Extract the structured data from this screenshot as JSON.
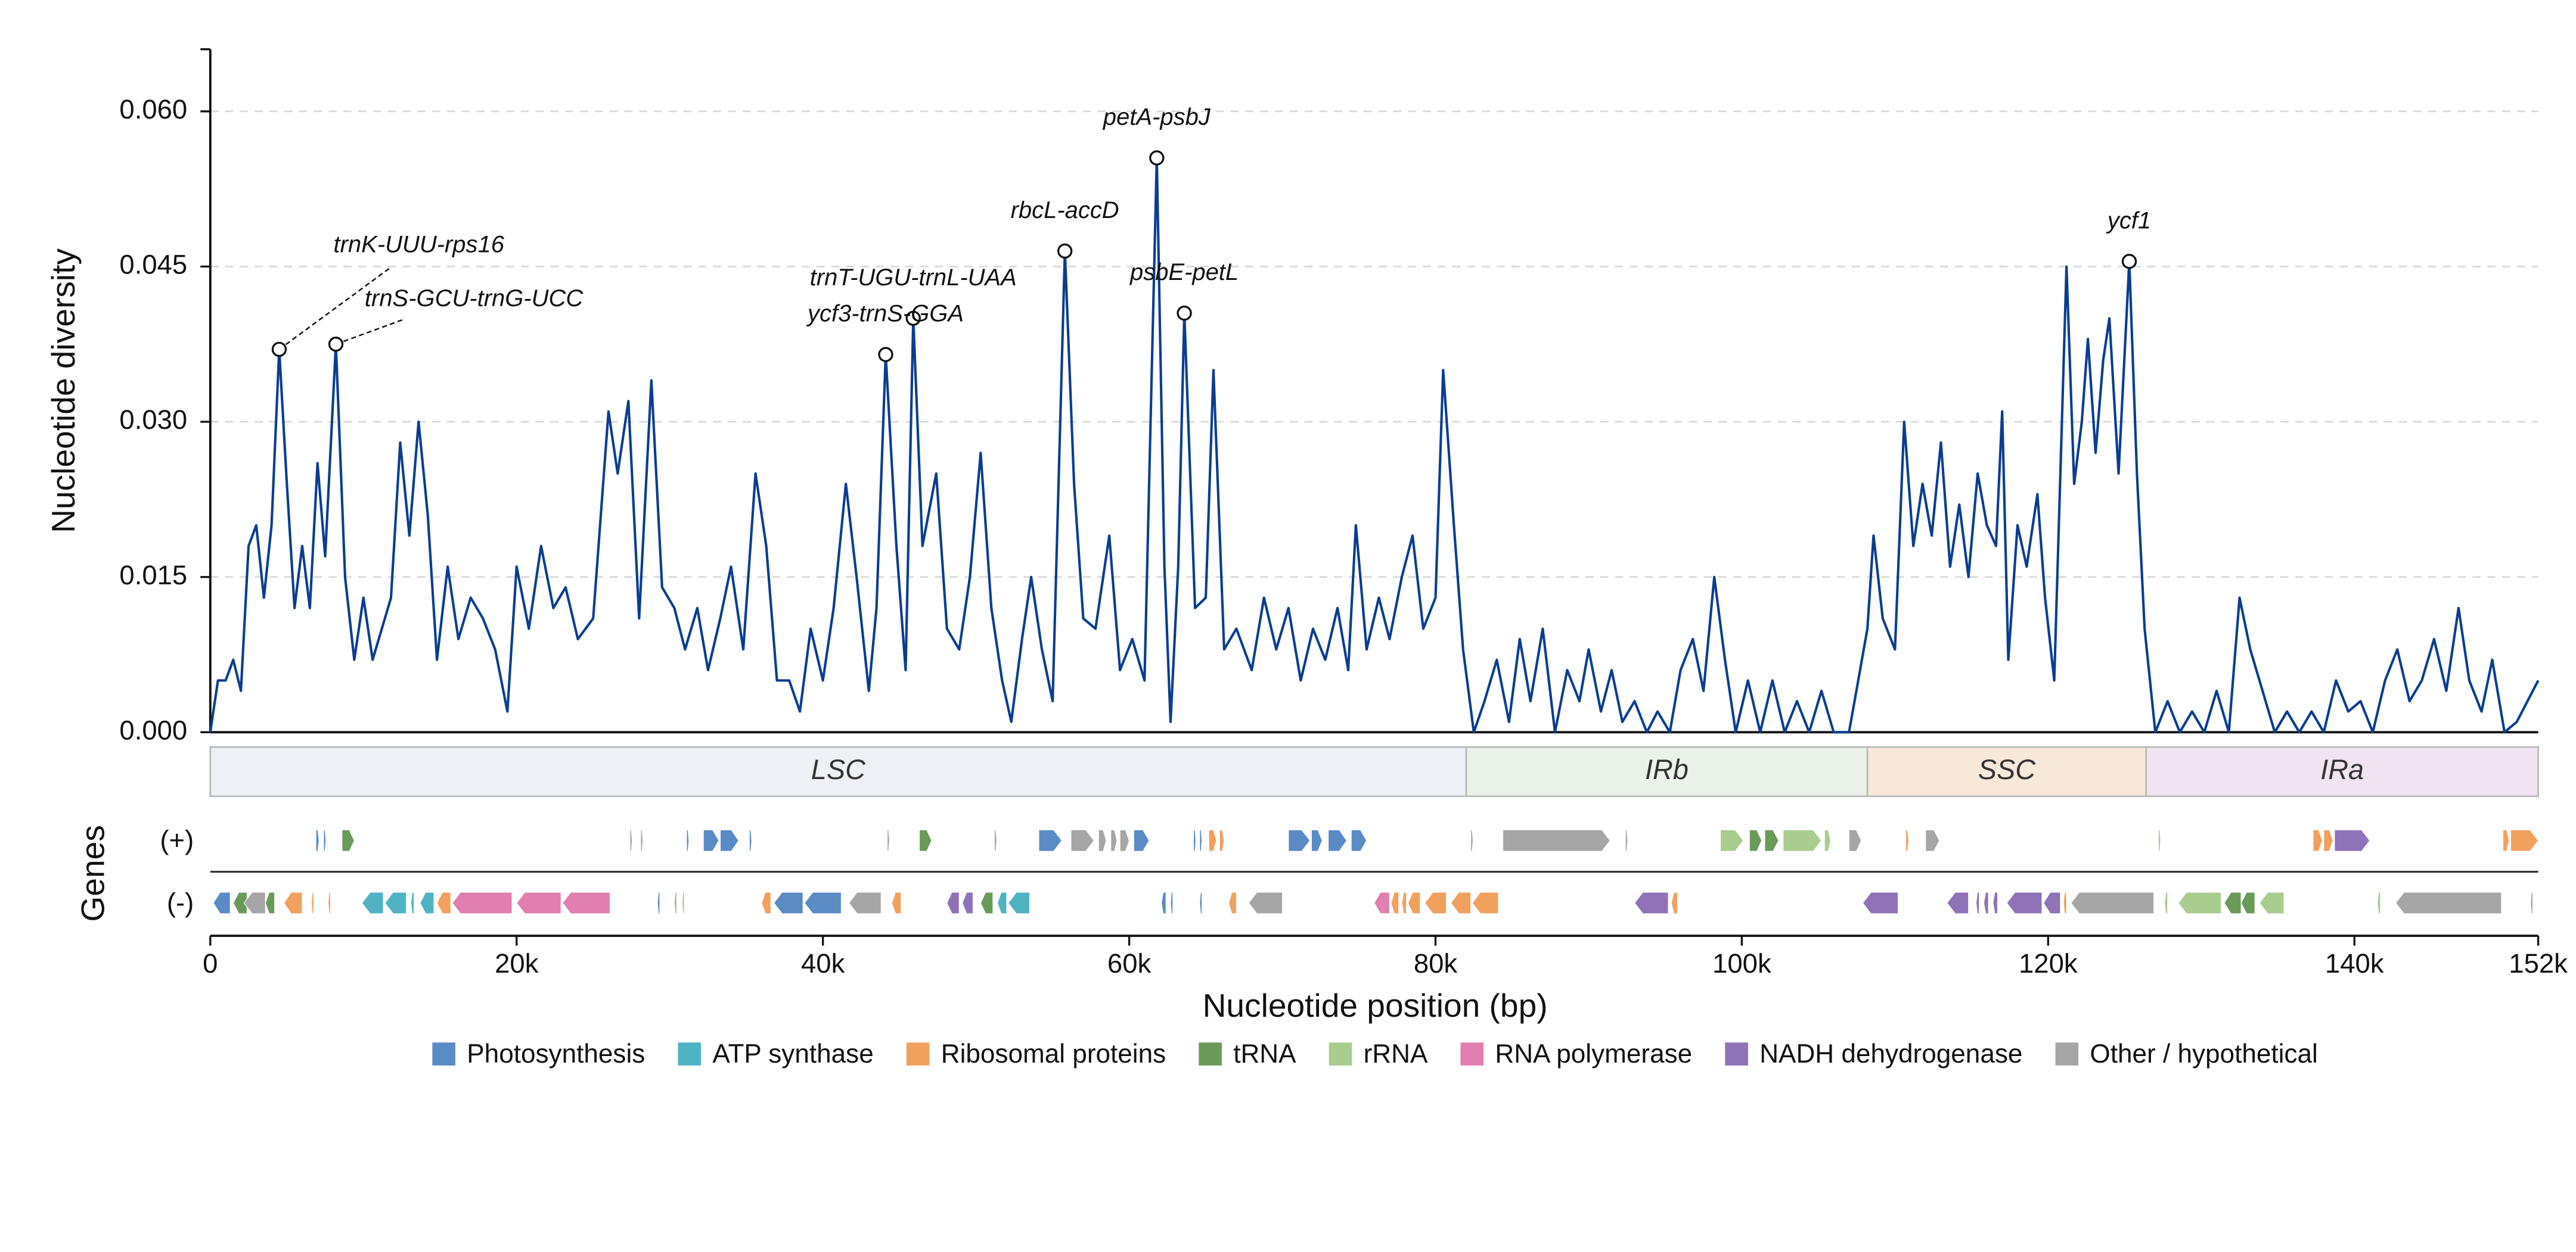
{
  "chart_data": {
    "type": "line",
    "y_label": "Nucleotide diversity",
    "x_label": "Nucleotide position (bp)",
    "color": "#0b3d91",
    "grid": true,
    "xlim": [
      0,
      152000
    ],
    "xticks": [
      0,
      {
        "value": 20000,
        "label": "20k"
      },
      {
        "value": 40000,
        "label": "40k"
      },
      {
        "value": 60000,
        "label": "60k"
      },
      {
        "value": 80000,
        "label": "80k"
      },
      {
        "value": 100000,
        "label": "100k"
      },
      {
        "value": 120000,
        "label": "120k"
      },
      {
        "value": 140000,
        "label": "140k"
      },
      {
        "value": 152000,
        "label": "152k"
      }
    ],
    "ylim": [
      0,
      0.066
    ],
    "yticks": [
      {
        "value": 0,
        "label": "0.000"
      },
      {
        "value": 0.015,
        "label": "0.015"
      },
      {
        "value": 0.03,
        "label": "0.030"
      },
      {
        "value": 0.045,
        "label": "0.045"
      },
      {
        "value": 0.06,
        "label": "0.060"
      }
    ],
    "x": [
      0,
      500,
      1000,
      1500,
      2000,
      2500,
      3000,
      3500,
      4000,
      4500,
      5000,
      5500,
      6000,
      6500,
      7000,
      7500,
      8200,
      8800,
      9400,
      10000,
      10600,
      11200,
      11800,
      12400,
      13000,
      13600,
      14200,
      14800,
      15500,
      16200,
      17000,
      17800,
      18600,
      19400,
      20000,
      20800,
      21600,
      22400,
      23200,
      24000,
      25000,
      26000,
      26600,
      27300,
      28000,
      28800,
      29500,
      30300,
      31000,
      31800,
      32500,
      33300,
      34000,
      34800,
      35600,
      36300,
      37000,
      37800,
      38500,
      39200,
      40000,
      40700,
      41500,
      42200,
      43000,
      43500,
      44100,
      44800,
      45400,
      45900,
      46500,
      47400,
      48100,
      48900,
      49600,
      50300,
      51000,
      51700,
      52300,
      53000,
      53600,
      54300,
      55000,
      55800,
      56400,
      57000,
      57800,
      58700,
      59400,
      60200,
      61000,
      61800,
      62300,
      62700,
      63200,
      63600,
      64300,
      65000,
      65500,
      66200,
      67000,
      68000,
      68800,
      69600,
      70400,
      71200,
      72000,
      72800,
      73600,
      74300,
      74800,
      75500,
      76300,
      77000,
      77800,
      78500,
      79200,
      80000,
      80500,
      81200,
      81800,
      82500,
      83200,
      84000,
      84800,
      85500,
      86200,
      87000,
      87800,
      88600,
      89400,
      90000,
      90800,
      91500,
      92200,
      93000,
      93800,
      94500,
      95300,
      96000,
      96800,
      97500,
      98200,
      98900,
      99600,
      100400,
      101200,
      102000,
      102800,
      103600,
      104400,
      105200,
      106000,
      107000,
      107600,
      108200,
      108600,
      109200,
      110000,
      110600,
      111200,
      111800,
      112400,
      113000,
      113600,
      114200,
      114800,
      115400,
      116000,
      116600,
      117000,
      117400,
      118000,
      118600,
      119300,
      119800,
      120400,
      121200,
      121700,
      122200,
      122600,
      123100,
      123600,
      124000,
      124600,
      125300,
      125800,
      126300,
      127000,
      127800,
      128600,
      129400,
      130200,
      131000,
      131800,
      132500,
      133200,
      134000,
      134800,
      135600,
      136400,
      137200,
      138000,
      138800,
      139600,
      140400,
      141200,
      142000,
      142800,
      143600,
      144400,
      145200,
      146000,
      146800,
      147500,
      148300,
      149000,
      149800,
      150600,
      151300,
      152000
    ],
    "values": [
      0,
      0.005,
      0.005,
      0.007,
      0.004,
      0.018,
      0.02,
      0.013,
      0.02,
      0.037,
      0.024,
      0.012,
      0.018,
      0.012,
      0.026,
      0.017,
      0.0375,
      0.015,
      0.007,
      0.013,
      0.007,
      0.01,
      0.013,
      0.028,
      0.019,
      0.03,
      0.021,
      0.007,
      0.016,
      0.009,
      0.013,
      0.011,
      0.008,
      0.002,
      0.016,
      0.01,
      0.018,
      0.012,
      0.014,
      0.009,
      0.011,
      0.031,
      0.025,
      0.032,
      0.011,
      0.034,
      0.014,
      0.012,
      0.008,
      0.012,
      0.006,
      0.011,
      0.016,
      0.008,
      0.025,
      0.018,
      0.005,
      0.005,
      0.002,
      0.01,
      0.005,
      0.012,
      0.024,
      0.015,
      0.004,
      0.012,
      0.0365,
      0.018,
      0.006,
      0.04,
      0.018,
      0.025,
      0.01,
      0.008,
      0.015,
      0.027,
      0.012,
      0.005,
      0.001,
      0.009,
      0.015,
      0.008,
      0.003,
      0.0465,
      0.024,
      0.011,
      0.01,
      0.019,
      0.006,
      0.009,
      0.005,
      0.0555,
      0.016,
      0.001,
      0.016,
      0.0405,
      0.012,
      0.013,
      0.035,
      0.008,
      0.01,
      0.006,
      0.013,
      0.008,
      0.012,
      0.005,
      0.01,
      0.007,
      0.012,
      0.006,
      0.02,
      0.008,
      0.013,
      0.009,
      0.015,
      0.019,
      0.01,
      0.013,
      0.035,
      0.02,
      0.008,
      0,
      0.003,
      0.007,
      0.001,
      0.009,
      0.003,
      0.01,
      0,
      0.006,
      0.003,
      0.008,
      0.002,
      0.006,
      0.001,
      0.003,
      0,
      0.002,
      0,
      0.006,
      0.009,
      0.004,
      0.015,
      0.007,
      0,
      0.005,
      0,
      0.005,
      0,
      0.003,
      0,
      0.004,
      0,
      0,
      0.005,
      0.01,
      0.019,
      0.011,
      0.008,
      0.03,
      0.018,
      0.024,
      0.019,
      0.028,
      0.016,
      0.022,
      0.015,
      0.025,
      0.02,
      0.018,
      0.031,
      0.007,
      0.02,
      0.016,
      0.023,
      0.013,
      0.005,
      0.045,
      0.024,
      0.03,
      0.038,
      0.027,
      0.036,
      0.04,
      0.025,
      0.0455,
      0.025,
      0.01,
      0,
      0.003,
      0,
      0.002,
      0,
      0.004,
      0,
      0.013,
      0.008,
      0.004,
      0,
      0.002,
      0,
      0.002,
      0,
      0.005,
      0.002,
      0.003,
      0,
      0.005,
      0.008,
      0.003,
      0.005,
      0.009,
      0.004,
      0.012,
      0.005,
      0.002,
      0.007,
      0,
      0.001,
      0.003,
      0.005
    ],
    "annotations": [
      {
        "label": "trnK-UUU-rps16",
        "x": 4500,
        "y": 0.037
      },
      {
        "label": "trnS-GCU-trnG-UCC",
        "x": 8200,
        "y": 0.0375
      },
      {
        "label": "trnT-UGU-trnL-UAA",
        "x": 45900,
        "y": 0.04
      },
      {
        "label": "ycf3-trnS-GGA",
        "x": 44100,
        "y": 0.0365
      },
      {
        "label": "rbcL-accD",
        "x": 55800,
        "y": 0.0465
      },
      {
        "label": "petA-psbJ",
        "x": 61800,
        "y": 0.0555
      },
      {
        "label": "psbE-petL",
        "x": 63600,
        "y": 0.0405
      },
      {
        "label": "ycf1",
        "x": 125300,
        "y": 0.0455
      }
    ],
    "regions": [
      {
        "name": "LSC",
        "start": 0,
        "end": 82000,
        "color": "#edf1f5"
      },
      {
        "name": "IRb",
        "start": 82000,
        "end": 108200,
        "color": "#ebf2ea"
      },
      {
        "name": "SSC",
        "start": 108200,
        "end": 126400,
        "color": "#f8e8da"
      },
      {
        "name": "IRa",
        "start": 126400,
        "end": 152000,
        "color": "#f0e4f1"
      }
    ],
    "genes_label": "Genes",
    "plus_label": "(+)",
    "minus_label": "(-)",
    "gene_categories": [
      {
        "name": "Photosynthesis",
        "color": "#5b8bc5"
      },
      {
        "name": "ATP synthase",
        "color": "#4fb3c4"
      },
      {
        "name": "Ribosomal proteins",
        "color": "#f2a05e"
      },
      {
        "name": "tRNA",
        "color": "#6a9a5a"
      },
      {
        "name": "rRNA",
        "color": "#a9cc8f"
      },
      {
        "name": "RNA polymerase",
        "color": "#e07fb0"
      },
      {
        "name": "NADH dehydrogenase",
        "color": "#8f72b7"
      },
      {
        "name": "Other / hypothetical",
        "color": "#a6a6a6"
      }
    ],
    "genes": {
      "plus": [
        [
          6900,
          7100,
          0
        ],
        [
          7400,
          7550,
          0
        ],
        [
          8600,
          9400,
          3
        ],
        [
          27400,
          27550,
          7
        ],
        [
          28100,
          28250,
          7
        ],
        [
          31100,
          31250,
          0
        ],
        [
          32200,
          33200,
          0
        ],
        [
          33300,
          34500,
          0
        ],
        [
          35200,
          35350,
          0
        ],
        [
          44200,
          44350,
          7
        ],
        [
          46300,
          47100,
          3
        ],
        [
          51200,
          51350,
          7
        ],
        [
          54100,
          55600,
          0
        ],
        [
          56200,
          57700,
          7
        ],
        [
          58000,
          58500,
          7
        ],
        [
          58800,
          59200,
          7
        ],
        [
          59400,
          60000,
          7
        ],
        [
          60300,
          61300,
          0
        ],
        [
          64200,
          64350,
          0
        ],
        [
          64600,
          64750,
          0
        ],
        [
          65200,
          65700,
          2
        ],
        [
          65900,
          66200,
          2
        ],
        [
          70400,
          71800,
          0
        ],
        [
          71900,
          72600,
          0
        ],
        [
          73000,
          74200,
          0
        ],
        [
          74500,
          75500,
          0
        ],
        [
          82300,
          82450,
          7
        ],
        [
          84400,
          91400,
          7
        ],
        [
          92400,
          92550,
          7
        ],
        [
          98600,
          100100,
          4
        ],
        [
          100500,
          101300,
          3
        ],
        [
          101500,
          102400,
          3
        ],
        [
          102700,
          105200,
          4
        ],
        [
          105400,
          105800,
          4
        ],
        [
          107000,
          107800,
          7
        ],
        [
          110700,
          110900,
          2
        ],
        [
          112000,
          112900,
          7
        ],
        [
          127200,
          127350,
          4
        ],
        [
          137300,
          137900,
          2
        ],
        [
          138000,
          138600,
          2
        ],
        [
          138700,
          141000,
          6
        ],
        [
          149700,
          150100,
          2
        ],
        [
          150200,
          152000,
          2
        ]
      ],
      "minus": [
        [
          200,
          1300,
          0
        ],
        [
          1500,
          2400,
          3
        ],
        [
          2200,
          3600,
          7
        ],
        [
          3600,
          4200,
          3
        ],
        [
          4800,
          6000,
          2
        ],
        [
          6600,
          6750,
          2
        ],
        [
          7700,
          7850,
          2
        ],
        [
          9900,
          11300,
          1
        ],
        [
          11400,
          12800,
          1
        ],
        [
          13100,
          13300,
          1
        ],
        [
          13700,
          14600,
          1
        ],
        [
          14800,
          15700,
          2
        ],
        [
          15800,
          19700,
          5
        ],
        [
          20000,
          22900,
          5
        ],
        [
          23000,
          26100,
          5
        ],
        [
          29200,
          29350,
          0
        ],
        [
          30300,
          30450,
          7
        ],
        [
          30800,
          30950,
          4
        ],
        [
          36000,
          36600,
          2
        ],
        [
          36800,
          38700,
          0
        ],
        [
          38800,
          41200,
          0
        ],
        [
          41700,
          43800,
          7
        ],
        [
          44500,
          45100,
          2
        ],
        [
          48100,
          48900,
          6
        ],
        [
          49100,
          49800,
          6
        ],
        [
          50300,
          51100,
          3
        ],
        [
          51400,
          52000,
          1
        ],
        [
          52100,
          53500,
          1
        ],
        [
          62100,
          62400,
          0
        ],
        [
          62700,
          62850,
          0
        ],
        [
          64600,
          64750,
          0
        ],
        [
          66500,
          67000,
          2
        ],
        [
          67800,
          70000,
          7
        ],
        [
          76000,
          77000,
          5
        ],
        [
          77100,
          77600,
          2
        ],
        [
          77800,
          78100,
          2
        ],
        [
          78200,
          79000,
          2
        ],
        [
          79300,
          80700,
          2
        ],
        [
          81000,
          82300,
          2
        ],
        [
          82400,
          84100,
          2
        ],
        [
          93000,
          95200,
          6
        ],
        [
          95400,
          95800,
          2
        ],
        [
          107900,
          110200,
          6
        ],
        [
          113400,
          114800,
          6
        ],
        [
          115300,
          115500,
          6
        ],
        [
          115800,
          116100,
          6
        ],
        [
          116400,
          116700,
          6
        ],
        [
          117300,
          119600,
          6
        ],
        [
          119700,
          120800,
          6
        ],
        [
          121000,
          121200,
          2
        ],
        [
          121500,
          126900,
          7
        ],
        [
          127600,
          127800,
          4
        ],
        [
          128500,
          131300,
          4
        ],
        [
          131500,
          132600,
          3
        ],
        [
          132600,
          133500,
          3
        ],
        [
          133800,
          135400,
          4
        ],
        [
          141500,
          141700,
          4
        ],
        [
          142700,
          149600,
          7
        ],
        [
          151500,
          151650,
          7
        ]
      ]
    }
  }
}
